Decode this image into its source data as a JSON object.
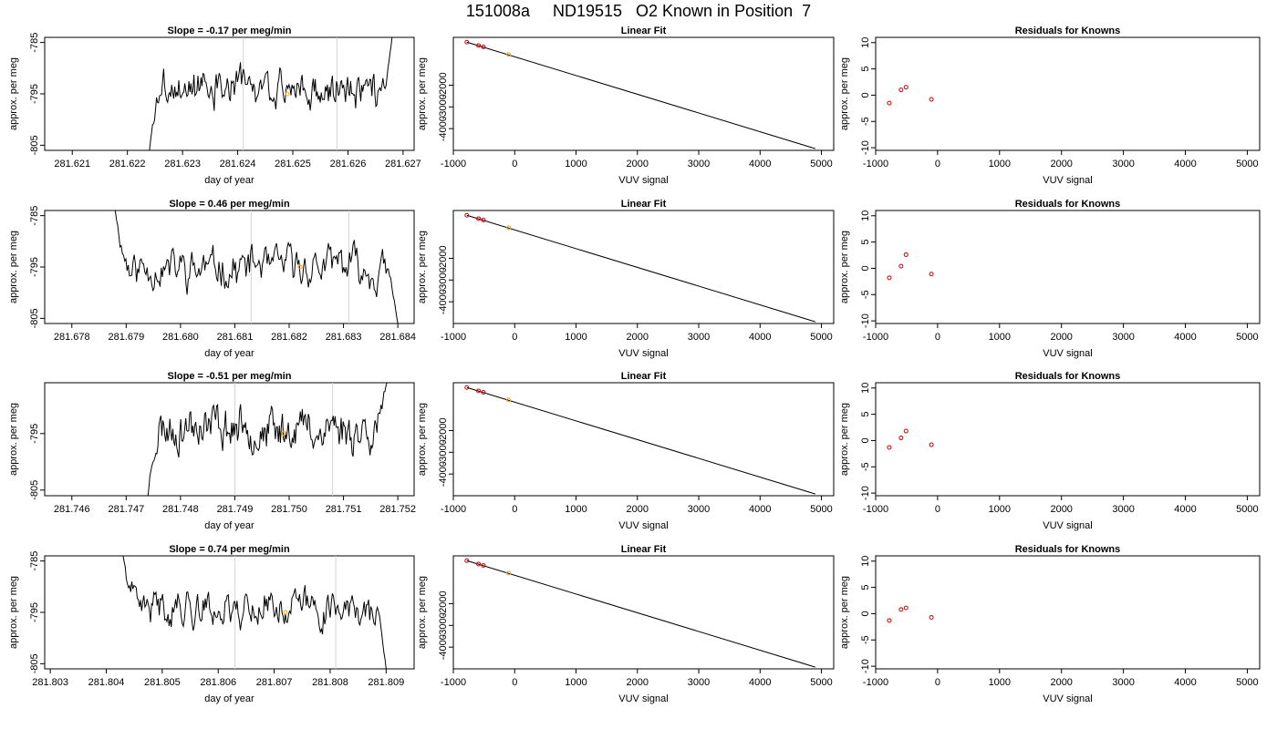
{
  "page_title": "151008a     ND19515   O2 Known in Position  7",
  "colors": {
    "trace": "#000000",
    "known_point": "#ffa500",
    "residual_point": "#cd0000",
    "marker_line": "#d3d3d3",
    "axis": "#000000"
  },
  "chart_data": [
    {
      "type": "line",
      "title": "Slope =  -0.17  per meg/min",
      "xlabel": "day of year",
      "ylabel": "approx. per meg",
      "xlim": [
        281.6205,
        281.6272
      ],
      "ylim": [
        -806,
        -784
      ],
      "xticks": [
        "281.621",
        "281.622",
        "281.623",
        "281.624",
        "281.625",
        "281.626",
        "281.627"
      ],
      "yticks": [
        "-785",
        "-795",
        "-805"
      ],
      "vlines": [
        281.6241,
        281.6258
      ],
      "trace": {
        "x_start": 281.6224,
        "x_end": 281.6268,
        "level": -794,
        "start_value": -806,
        "end_value": -784,
        "amplitude": 2.4,
        "seed": 3
      },
      "highlight_point": {
        "x": 281.6249,
        "y": -795
      }
    },
    {
      "type": "scatter",
      "title": "Linear Fit",
      "xlabel": "VUV signal",
      "ylabel": "approx. per meg",
      "xlim": [
        -1000,
        5200
      ],
      "ylim": [
        -5000,
        200
      ],
      "xticks": [
        "-1000",
        "0",
        "1000",
        "2000",
        "3000",
        "4000",
        "5000"
      ],
      "yticks": [
        "-2000",
        "-3000",
        "-4000"
      ],
      "fit_line": {
        "x": [
          -780,
          4900
        ],
        "y": [
          -20,
          -4920
        ]
      },
      "points": [
        {
          "x": -780,
          "y": -20
        },
        {
          "x": -590,
          "y": -175
        },
        {
          "x": -510,
          "y": -240
        }
      ],
      "highlight_point": {
        "x": -100,
        "y": -590
      }
    },
    {
      "type": "scatter",
      "title": "Residuals for Knowns",
      "xlabel": "VUV signal",
      "ylabel": "approx. per meg",
      "xlim": [
        -1000,
        5200
      ],
      "ylim": [
        -10.5,
        11
      ],
      "xticks": [
        "-1000",
        "0",
        "1000",
        "2000",
        "3000",
        "4000",
        "5000"
      ],
      "yticks": [
        "10",
        "5",
        "0",
        "-5",
        "-10"
      ],
      "points": [
        {
          "x": -780,
          "y": -1.5
        },
        {
          "x": -590,
          "y": 1.0
        },
        {
          "x": -510,
          "y": 1.5
        },
        {
          "x": -100,
          "y": -0.8
        }
      ]
    },
    {
      "type": "line",
      "title": "Slope =  0.46  per meg/min",
      "xlabel": "day of year",
      "ylabel": "approx. per meg",
      "xlim": [
        281.6775,
        281.6843
      ],
      "ylim": [
        -806,
        -784
      ],
      "xticks": [
        "281.678",
        "281.679",
        "281.680",
        "281.681",
        "281.682",
        "281.683",
        "281.684"
      ],
      "yticks": [
        "-785",
        "-795",
        "-805"
      ],
      "vlines": [
        281.6813,
        281.6831
      ],
      "trace": {
        "x_start": 281.6788,
        "x_end": 281.684,
        "level": -795,
        "start_value": -784,
        "end_value": -806,
        "amplitude": 2.6,
        "seed": 11
      },
      "highlight_point": {
        "x": 281.6822,
        "y": -795
      }
    },
    {
      "type": "scatter",
      "title": "Linear Fit",
      "xlabel": "VUV signal",
      "ylabel": "approx. per meg",
      "xlim": [
        -1000,
        5200
      ],
      "ylim": [
        -5000,
        200
      ],
      "xticks": [
        "-1000",
        "0",
        "1000",
        "2000",
        "3000",
        "4000",
        "5000"
      ],
      "yticks": [
        "-2000",
        "-3000",
        "-4000"
      ],
      "fit_line": {
        "x": [
          -780,
          4900
        ],
        "y": [
          -20,
          -4920
        ]
      },
      "points": [
        {
          "x": -780,
          "y": -20
        },
        {
          "x": -590,
          "y": -175
        },
        {
          "x": -510,
          "y": -240
        }
      ],
      "highlight_point": {
        "x": -100,
        "y": -590
      }
    },
    {
      "type": "scatter",
      "title": "Residuals for Knowns",
      "xlabel": "VUV signal",
      "ylabel": "approx. per meg",
      "xlim": [
        -1000,
        5200
      ],
      "ylim": [
        -10.5,
        11
      ],
      "xticks": [
        "-1000",
        "0",
        "1000",
        "2000",
        "3000",
        "4000",
        "5000"
      ],
      "yticks": [
        "10",
        "5",
        "0",
        "-5",
        "-10"
      ],
      "points": [
        {
          "x": -780,
          "y": -1.8
        },
        {
          "x": -590,
          "y": 0.4
        },
        {
          "x": -510,
          "y": 2.6
        },
        {
          "x": -100,
          "y": -1.1
        }
      ]
    },
    {
      "type": "line",
      "title": "Slope =  -0.51  per meg/min",
      "xlabel": "day of year",
      "ylabel": "approx. per meg",
      "xlim": [
        281.7455,
        281.7523
      ],
      "ylim": [
        -806,
        -786
      ],
      "xticks": [
        "281.746",
        "281.747",
        "281.748",
        "281.749",
        "281.750",
        "281.751",
        "281.752"
      ],
      "yticks": [
        "-795",
        "-805"
      ],
      "vlines": [
        281.749,
        281.7508
      ],
      "trace": {
        "x_start": 281.7474,
        "x_end": 281.7518,
        "level": -794,
        "start_value": -806,
        "end_value": -786,
        "amplitude": 2.6,
        "seed": 23
      },
      "highlight_point": {
        "x": 281.7499,
        "y": -795
      }
    },
    {
      "type": "scatter",
      "title": "Linear Fit",
      "xlabel": "VUV signal",
      "ylabel": "approx. per meg",
      "xlim": [
        -1000,
        5200
      ],
      "ylim": [
        -5000,
        200
      ],
      "xticks": [
        "-1000",
        "0",
        "1000",
        "2000",
        "3000",
        "4000",
        "5000"
      ],
      "yticks": [
        "-2000",
        "-3000",
        "-4000"
      ],
      "fit_line": {
        "x": [
          -780,
          4900
        ],
        "y": [
          -20,
          -4920
        ]
      },
      "points": [
        {
          "x": -780,
          "y": -20
        },
        {
          "x": -590,
          "y": -175
        },
        {
          "x": -510,
          "y": -240
        }
      ],
      "highlight_point": {
        "x": -100,
        "y": -590
      }
    },
    {
      "type": "scatter",
      "title": "Residuals for Knowns",
      "xlabel": "VUV signal",
      "ylabel": "approx. per meg",
      "xlim": [
        -1000,
        5200
      ],
      "ylim": [
        -10.5,
        11
      ],
      "xticks": [
        "-1000",
        "0",
        "1000",
        "2000",
        "3000",
        "4000",
        "5000"
      ],
      "yticks": [
        "10",
        "5",
        "0",
        "-5",
        "-10"
      ],
      "points": [
        {
          "x": -780,
          "y": -1.3
        },
        {
          "x": -590,
          "y": 0.5
        },
        {
          "x": -510,
          "y": 1.8
        },
        {
          "x": -100,
          "y": -0.8
        }
      ]
    },
    {
      "type": "line",
      "title": "Slope =  0.74  per meg/min",
      "xlabel": "day of year",
      "ylabel": "approx. per meg",
      "xlim": [
        281.8029,
        281.8095
      ],
      "ylim": [
        -806,
        -784
      ],
      "xticks": [
        "281.803",
        "281.804",
        "281.805",
        "281.806",
        "281.807",
        "281.808",
        "281.809"
      ],
      "yticks": [
        "-785",
        "-795",
        "-805"
      ],
      "vlines": [
        281.8063,
        281.8081
      ],
      "trace": {
        "x_start": 281.8043,
        "x_end": 281.809,
        "level": -794,
        "start_value": -784,
        "end_value": -806,
        "amplitude": 2.4,
        "seed": 41
      },
      "highlight_point": {
        "x": 281.8072,
        "y": -795
      }
    },
    {
      "type": "scatter",
      "title": "Linear Fit",
      "xlabel": "VUV signal",
      "ylabel": "approx. per meg",
      "xlim": [
        -1000,
        5200
      ],
      "ylim": [
        -5000,
        200
      ],
      "xticks": [
        "-1000",
        "0",
        "1000",
        "2000",
        "3000",
        "4000",
        "5000"
      ],
      "yticks": [
        "-2000",
        "-3000",
        "-4000"
      ],
      "fit_line": {
        "x": [
          -780,
          4900
        ],
        "y": [
          -20,
          -4920
        ]
      },
      "points": [
        {
          "x": -780,
          "y": -20
        },
        {
          "x": -590,
          "y": -175
        },
        {
          "x": -510,
          "y": -240
        }
      ],
      "highlight_point": {
        "x": -100,
        "y": -590
      }
    },
    {
      "type": "scatter",
      "title": "Residuals for Knowns",
      "xlabel": "VUV signal",
      "ylabel": "approx. per meg",
      "xlim": [
        -1000,
        5200
      ],
      "ylim": [
        -10.5,
        11
      ],
      "xticks": [
        "-1000",
        "0",
        "1000",
        "2000",
        "3000",
        "4000",
        "5000"
      ],
      "yticks": [
        "10",
        "5",
        "0",
        "-5",
        "-10"
      ],
      "points": [
        {
          "x": -780,
          "y": -1.3
        },
        {
          "x": -590,
          "y": 0.8
        },
        {
          "x": -510,
          "y": 1.1
        },
        {
          "x": -100,
          "y": -0.7
        }
      ]
    }
  ]
}
